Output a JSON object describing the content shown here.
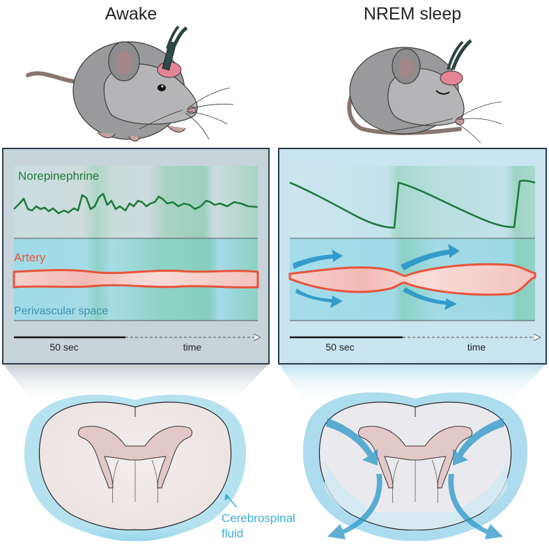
{
  "headings": {
    "awake": "Awake",
    "sleep": "NREM sleep"
  },
  "awake_panel": {
    "norepinephrine_label": "Norepinephrine",
    "artery_label": "Artery",
    "perivascular_label": "Perivascular space",
    "scale_label": "50 sec",
    "time_label": "time"
  },
  "sleep_panel": {
    "scale_label": "50 sec",
    "time_label": "time"
  },
  "brain_labels": {
    "csf_line1": "Cerebrospinal",
    "csf_line2": "fluid"
  },
  "colors": {
    "norepinephrine": "#1e7a3c",
    "artery": "#e8533a",
    "csf": "#3aaed8",
    "flow_arrow": "#2a96c8",
    "panel_border": "#2a3a4a"
  }
}
